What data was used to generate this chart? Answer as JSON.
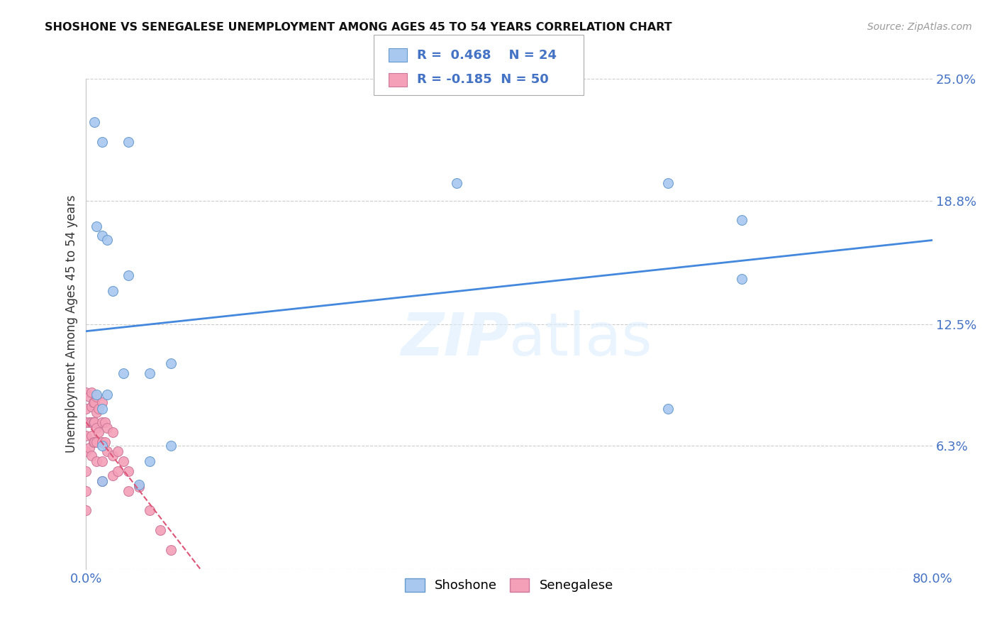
{
  "title": "SHOSHONE VS SENEGALESE UNEMPLOYMENT AMONG AGES 45 TO 54 YEARS CORRELATION CHART",
  "source": "Source: ZipAtlas.com",
  "ylabel": "Unemployment Among Ages 45 to 54 years",
  "xlim": [
    0.0,
    0.8
  ],
  "ylim": [
    0.0,
    0.25
  ],
  "xticks": [
    0.0,
    0.1,
    0.2,
    0.3,
    0.4,
    0.5,
    0.6,
    0.7,
    0.8
  ],
  "xticklabels": [
    "0.0%",
    "",
    "",
    "",
    "",
    "",
    "",
    "",
    "80.0%"
  ],
  "ytick_values": [
    0.0,
    0.063,
    0.125,
    0.188,
    0.25
  ],
  "ytick_labels": [
    "",
    "6.3%",
    "12.5%",
    "18.8%",
    "25.0%"
  ],
  "shoshone_R": 0.468,
  "shoshone_N": 24,
  "senegalese_R": -0.185,
  "senegalese_N": 50,
  "shoshone_color": "#a8c8f0",
  "shoshone_edge_color": "#6699cc",
  "shoshone_line_color": "#4488dd",
  "senegalese_color": "#f4a0b8",
  "senegalese_edge_color": "#cc7799",
  "senegalese_line_color": "#dd5577",
  "watermark_color": "#ddeeff",
  "shoshone_x": [
    0.008,
    0.015,
    0.04,
    0.01,
    0.015,
    0.35,
    0.55,
    0.62,
    0.02,
    0.04,
    0.025,
    0.035,
    0.06,
    0.08,
    0.01,
    0.02,
    0.015,
    0.55,
    0.62,
    0.015,
    0.015,
    0.05,
    0.08,
    0.06
  ],
  "shoshone_y": [
    0.228,
    0.218,
    0.218,
    0.175,
    0.17,
    0.197,
    0.197,
    0.178,
    0.168,
    0.15,
    0.142,
    0.1,
    0.1,
    0.105,
    0.089,
    0.089,
    0.082,
    0.082,
    0.148,
    0.063,
    0.045,
    0.043,
    0.063,
    0.055
  ],
  "senegalese_x": [
    0.0,
    0.0,
    0.0,
    0.0,
    0.0,
    0.0,
    0.0,
    0.0,
    0.003,
    0.003,
    0.003,
    0.005,
    0.005,
    0.005,
    0.005,
    0.005,
    0.007,
    0.007,
    0.007,
    0.008,
    0.008,
    0.008,
    0.01,
    0.01,
    0.01,
    0.01,
    0.01,
    0.012,
    0.012,
    0.015,
    0.015,
    0.015,
    0.015,
    0.015,
    0.018,
    0.018,
    0.02,
    0.02,
    0.025,
    0.025,
    0.025,
    0.03,
    0.03,
    0.035,
    0.04,
    0.04,
    0.05,
    0.06,
    0.07,
    0.08
  ],
  "senegalese_y": [
    0.09,
    0.082,
    0.075,
    0.068,
    0.06,
    0.05,
    0.04,
    0.03,
    0.088,
    0.075,
    0.062,
    0.09,
    0.083,
    0.075,
    0.068,
    0.058,
    0.085,
    0.075,
    0.065,
    0.085,
    0.075,
    0.065,
    0.088,
    0.08,
    0.072,
    0.065,
    0.055,
    0.082,
    0.07,
    0.085,
    0.075,
    0.065,
    0.055,
    0.045,
    0.075,
    0.065,
    0.072,
    0.06,
    0.07,
    0.058,
    0.048,
    0.06,
    0.05,
    0.055,
    0.05,
    0.04,
    0.042,
    0.03,
    0.02,
    0.01
  ]
}
